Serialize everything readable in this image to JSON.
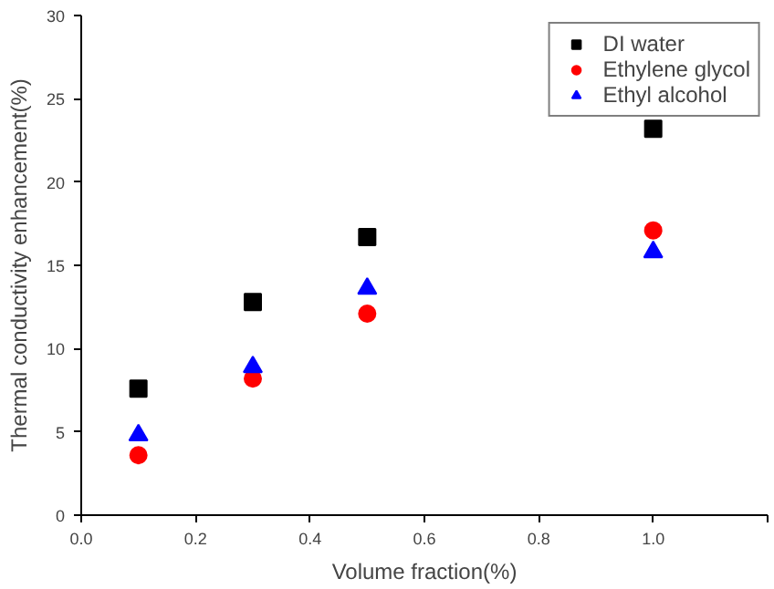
{
  "chart_data": {
    "type": "scatter",
    "xlabel": "Volume fraction(%)",
    "ylabel": "Thermal conductivity enhancement(%)",
    "x": [
      0.1,
      0.3,
      0.5,
      1.0
    ],
    "series": [
      {
        "name": "DI water",
        "color": "#000000",
        "marker": "square",
        "values": [
          7.6,
          12.8,
          16.7,
          23.2
        ]
      },
      {
        "name": "Ethylene glycol",
        "color": "#ff0000",
        "marker": "circle",
        "values": [
          3.6,
          8.2,
          12.1,
          17.1
        ]
      },
      {
        "name": "Ethyl alcohol",
        "color": "#0000ff",
        "marker": "triangle",
        "values": [
          4.8,
          8.9,
          13.6,
          15.8
        ]
      }
    ],
    "xlim": [
      0,
      1.2
    ],
    "ylim": [
      0,
      30
    ],
    "xticks": [
      {
        "value": 0,
        "label": "0.0"
      },
      0.2,
      0.4,
      0.6,
      0.8,
      {
        "value": 1,
        "label": "1.0"
      },
      {
        "value": 1.2,
        "label": null
      }
    ],
    "yticks": [
      0,
      5,
      10,
      15,
      20,
      25,
      30
    ],
    "grid": false,
    "legend": "top right"
  }
}
